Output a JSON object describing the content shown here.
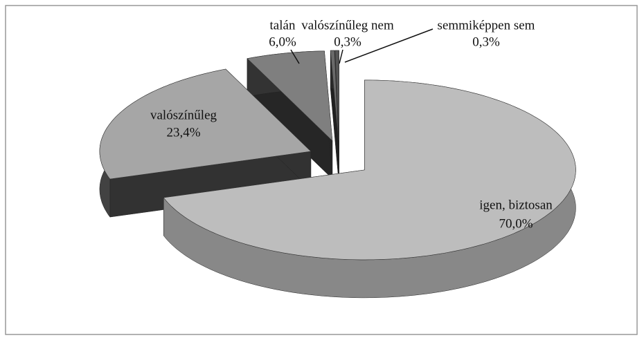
{
  "chart_data": {
    "type": "pie3d",
    "categories": [
      "igen, biztosan",
      "valószínűleg",
      "talán",
      "valószínűleg nem",
      "semmiképpen sem"
    ],
    "values": [
      70.0,
      23.4,
      6.0,
      0.3,
      0.3
    ],
    "value_labels": [
      "70,0%",
      "23,4%",
      "6,0%",
      "0,3%",
      "0,3%"
    ],
    "colors": [
      "#bdbdbd",
      "#a6a6a6",
      "#7f7f7f",
      "#6a6a6a",
      "#555555"
    ]
  }
}
